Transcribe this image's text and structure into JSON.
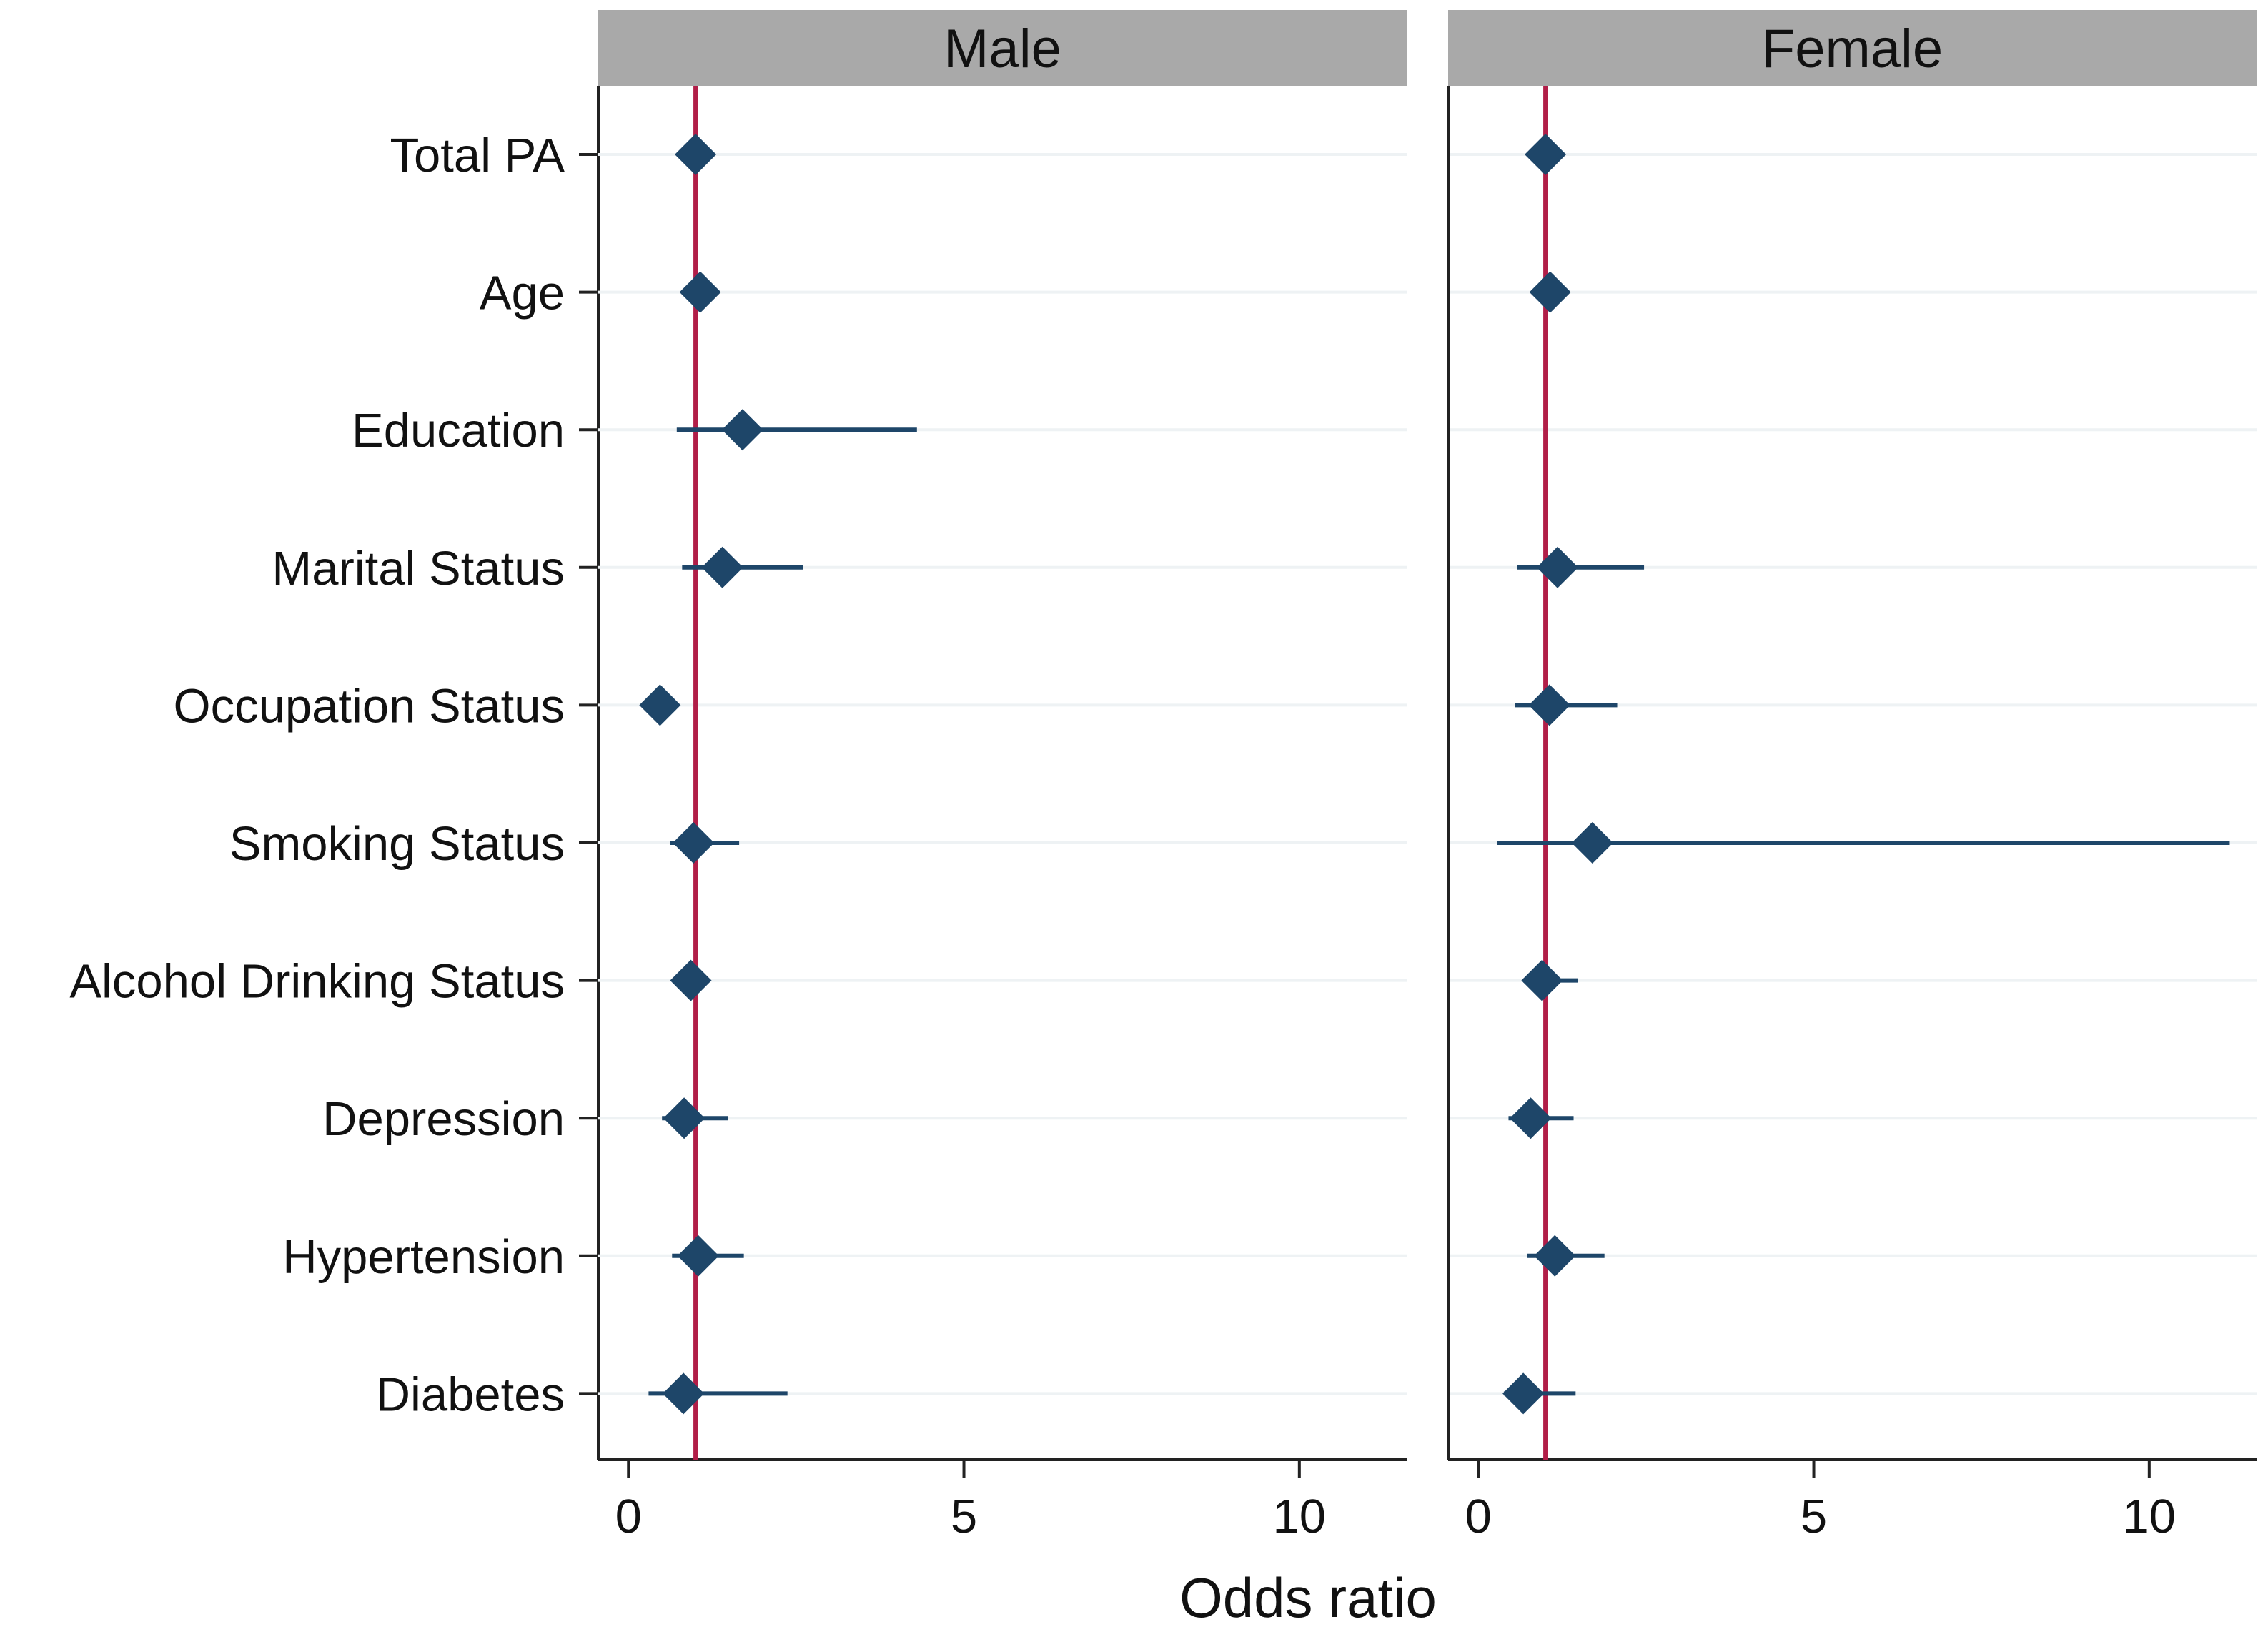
{
  "chart_data": {
    "type": "forest",
    "xlabel": "Odds ratio",
    "xlim": [
      -0.45,
      11.6
    ],
    "xticks": [
      0,
      5,
      10
    ],
    "reference_line": 1,
    "categories": [
      "Total PA",
      "Age",
      "Education",
      "Marital Status",
      "Occupation Status",
      "Smoking Status",
      "Alcohol Drinking Status",
      "Depression",
      "Hypertension",
      "Diabetes"
    ],
    "panels": [
      {
        "title": "Male",
        "estimates": [
          1.0,
          1.07,
          1.7,
          1.4,
          0.47,
          0.97,
          0.93,
          0.83,
          1.04,
          0.82
        ],
        "ci_lower": [
          0.99,
          1.0,
          0.72,
          0.8,
          0.47,
          0.62,
          0.93,
          0.5,
          0.65,
          0.3
        ],
        "ci_upper": [
          1.01,
          1.14,
          4.3,
          2.6,
          0.47,
          1.65,
          0.93,
          1.48,
          1.72,
          2.37
        ]
      },
      {
        "title": "Female",
        "estimates": [
          1.0,
          1.07,
          null,
          1.18,
          1.06,
          1.7,
          0.95,
          0.78,
          1.14,
          0.67
        ],
        "ci_lower": [
          0.99,
          1.0,
          null,
          0.58,
          0.55,
          0.28,
          0.67,
          0.45,
          0.73,
          0.38
        ],
        "ci_upper": [
          1.01,
          1.14,
          null,
          2.47,
          2.07,
          11.2,
          1.48,
          1.42,
          1.88,
          1.45
        ]
      }
    ]
  },
  "colors": {
    "marker": "#1e4669",
    "reference_line": "#b11e48",
    "strip": "#a9a9a9",
    "grid": "#eef2f4"
  }
}
